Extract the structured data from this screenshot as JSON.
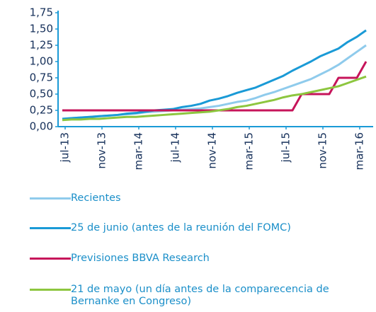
{
  "chart_data": {
    "type": "line",
    "categories": [
      "jul-13",
      null,
      null,
      null,
      "nov-13",
      null,
      null,
      null,
      "mar-14",
      null,
      null,
      null,
      "jul-14",
      null,
      null,
      null,
      "nov-14",
      null,
      null,
      null,
      "mar-15",
      null,
      null,
      null,
      "jul-15",
      null,
      null,
      null,
      "nov-15",
      null,
      null,
      null,
      "mar-16",
      null
    ],
    "series": [
      {
        "name": "Recientes",
        "color": "#8fcbec",
        "values": [
          0.12,
          0.13,
          0.14,
          0.15,
          0.16,
          0.17,
          0.18,
          0.19,
          0.2,
          0.22,
          0.23,
          0.24,
          0.25,
          0.26,
          0.27,
          0.28,
          0.3,
          0.32,
          0.35,
          0.38,
          0.4,
          0.44,
          0.49,
          0.53,
          0.58,
          0.63,
          0.68,
          0.73,
          0.8,
          0.87,
          0.95,
          1.05,
          1.15,
          1.25
        ]
      },
      {
        "name": "25 de junio (antes de la reunión del FOMC)",
        "color": "#1a9ad6",
        "values": [
          0.12,
          0.13,
          0.14,
          0.15,
          0.16,
          0.17,
          0.18,
          0.2,
          0.21,
          0.23,
          0.25,
          0.26,
          0.27,
          0.3,
          0.32,
          0.35,
          0.4,
          0.43,
          0.47,
          0.52,
          0.56,
          0.6,
          0.66,
          0.72,
          0.78,
          0.86,
          0.93,
          1.0,
          1.08,
          1.14,
          1.2,
          1.3,
          1.38,
          1.48
        ]
      },
      {
        "name": "Previsiones BBVA Research",
        "color": "#c6145a",
        "values": [
          0.25,
          0.25,
          0.25,
          0.25,
          0.25,
          0.25,
          0.25,
          0.25,
          0.25,
          0.25,
          0.25,
          0.25,
          0.25,
          0.25,
          0.25,
          0.25,
          0.25,
          0.25,
          0.25,
          0.25,
          0.25,
          0.25,
          0.25,
          0.25,
          0.25,
          0.25,
          0.5,
          0.5,
          0.5,
          0.5,
          0.75,
          0.75,
          0.75,
          1.0
        ]
      },
      {
        "name": "21 de mayo (un día antes de la comparecencia de Bernanke en Congreso)",
        "color": "#8dc63f",
        "values": [
          0.1,
          0.11,
          0.11,
          0.12,
          0.12,
          0.13,
          0.14,
          0.15,
          0.15,
          0.16,
          0.17,
          0.18,
          0.19,
          0.2,
          0.21,
          0.22,
          0.23,
          0.25,
          0.27,
          0.3,
          0.32,
          0.35,
          0.38,
          0.41,
          0.45,
          0.48,
          0.5,
          0.53,
          0.56,
          0.59,
          0.62,
          0.67,
          0.72,
          0.77
        ]
      }
    ],
    "ylim": [
      0,
      1.75
    ],
    "yticks": [
      {
        "value": 0,
        "label": "0,00"
      },
      {
        "value": 0.25,
        "label": "0,25"
      },
      {
        "value": 0.5,
        "label": "0,50"
      },
      {
        "value": 0.75,
        "label": "0,75"
      },
      {
        "value": 1,
        "label": "1,00"
      },
      {
        "value": 1.25,
        "label": "1,25"
      },
      {
        "value": 1.5,
        "label": "1,50"
      },
      {
        "value": 1.75,
        "label": "1,75"
      }
    ]
  }
}
